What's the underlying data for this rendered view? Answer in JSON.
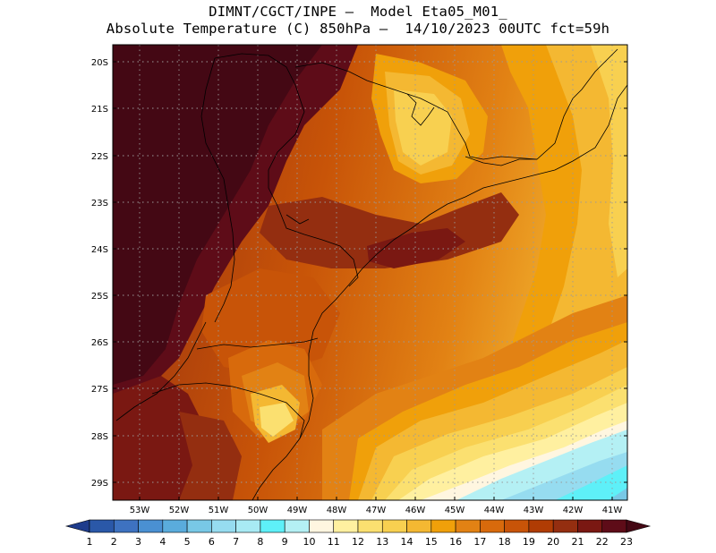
{
  "header": {
    "line1": "DIMNT/CGCT/INPE –  Model Eta05_M01_",
    "line2": "Absolute Temperature (C) 850hPa –  14/10/2023 00UTC fct=59h"
  },
  "map": {
    "lat_ticks": [
      "20S",
      "21S",
      "22S",
      "23S",
      "24S",
      "25S",
      "26S",
      "27S",
      "28S",
      "29S"
    ],
    "lon_ticks": [
      "53W",
      "52W",
      "51W",
      "50W",
      "49W",
      "48W",
      "47W",
      "46W",
      "45W",
      "44W",
      "43W",
      "42W",
      "41W"
    ],
    "lat_range": [
      "19.9S",
      "29.4S"
    ],
    "lon_range": [
      "53.7W",
      "40.6W"
    ],
    "variable": "Absolute Temperature (C)",
    "level": "850hPa"
  },
  "colorbar": {
    "labels": [
      "1",
      "2",
      "3",
      "4",
      "5",
      "6",
      "7",
      "8",
      "9",
      "10",
      "11",
      "12",
      "13",
      "14",
      "15",
      "16",
      "17",
      "18",
      "19",
      "20",
      "21",
      "22",
      "23"
    ],
    "colors": [
      "#1e3c8c",
      "#2a58a8",
      "#3e72c0",
      "#4a90d2",
      "#5aacdc",
      "#78c8e6",
      "#96dcf0",
      "#a8eaf4",
      "#5ef0f8",
      "#b4f0f4",
      "#fff6e0",
      "#fff0a0",
      "#fbe070",
      "#f8d050",
      "#f4b832",
      "#f0a00a",
      "#e28214",
      "#d86a0c",
      "#c85408",
      "#b03c04",
      "#942e10",
      "#7a1812",
      "#5e0c18",
      "#440814"
    ]
  }
}
